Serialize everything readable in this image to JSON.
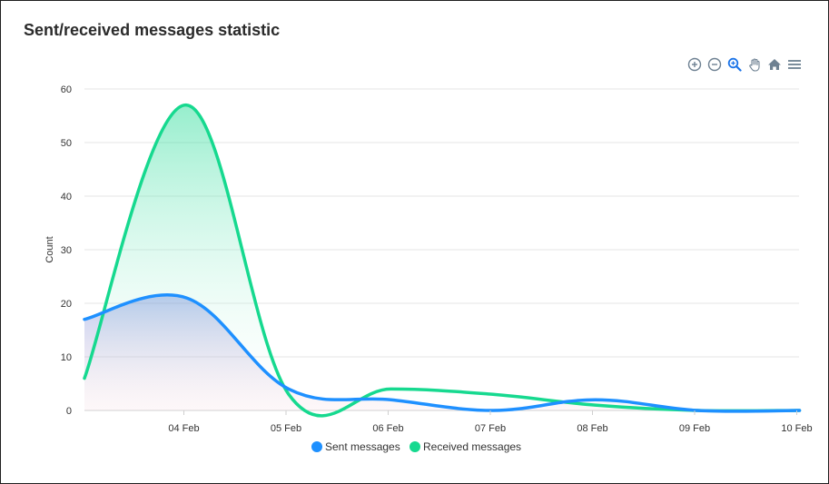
{
  "card": {
    "title": "Sent/received messages statistic"
  },
  "toolbar": {
    "icons": [
      "zoom-in-icon",
      "zoom-out-icon",
      "selection-zoom-icon",
      "pan-hand-icon",
      "reset-home-icon",
      "menu-icon"
    ],
    "active_color": "#1a73e8",
    "icon_color": "#6e8192"
  },
  "chart_data": {
    "type": "area",
    "title": "",
    "xlabel": "",
    "ylabel": "Count",
    "ylim": [
      0,
      60
    ],
    "yticks": [
      "0",
      "10",
      "20",
      "30",
      "40",
      "50",
      "60"
    ],
    "x_tick_labels": [
      "04 Feb",
      "05 Feb",
      "06 Feb",
      "07 Feb",
      "08 Feb",
      "09 Feb",
      "10 Feb"
    ],
    "x": [
      "03 Feb",
      "04 Feb",
      "05 Feb",
      "06 Feb",
      "07 Feb",
      "08 Feb",
      "09 Feb",
      "10 Feb"
    ],
    "series": [
      {
        "name": "Sent messages",
        "color": "#1e90ff",
        "values": [
          17,
          21,
          4,
          2,
          0,
          2,
          0,
          0
        ]
      },
      {
        "name": "Received messages",
        "color": "#16d98f",
        "values": [
          6,
          57,
          3,
          4,
          3,
          1,
          0,
          0
        ]
      }
    ],
    "grid": true,
    "legend": "bottom-center"
  }
}
